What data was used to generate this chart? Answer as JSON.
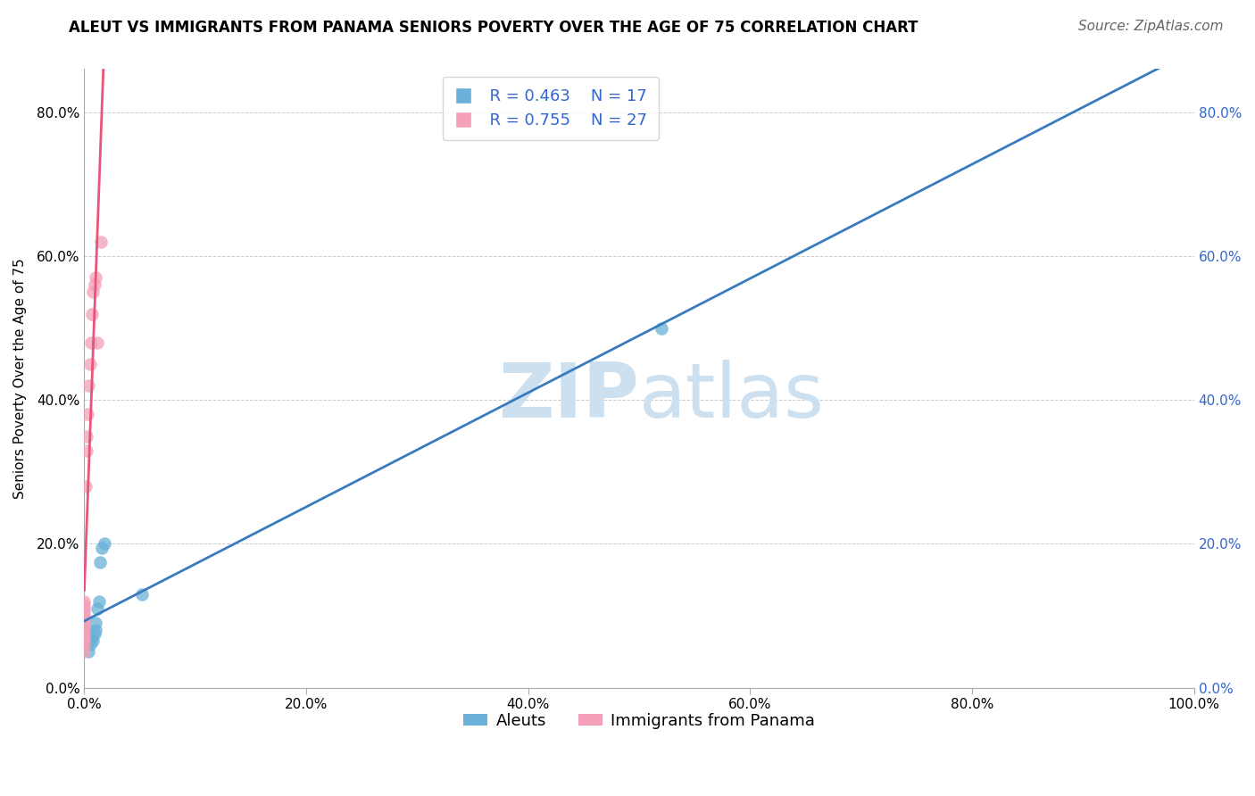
{
  "title": "ALEUT VS IMMIGRANTS FROM PANAMA SENIORS POVERTY OVER THE AGE OF 75 CORRELATION CHART",
  "source": "Source: ZipAtlas.com",
  "ylabel": "Seniors Poverty Over the Age of 75",
  "xlabel": "",
  "R_aleuts": 0.463,
  "N_aleuts": 17,
  "R_panama": 0.755,
  "N_panama": 27,
  "aleuts_color": "#6ab0d8",
  "panama_color": "#f4a0b8",
  "aleuts_line_color": "#3a7bbf",
  "panama_line_color": "#e8547a",
  "watermark_color": "#cce0f0",
  "xlim": [
    0.0,
    1.0
  ],
  "ylim": [
    0.0,
    0.86
  ],
  "xticks": [
    0.0,
    0.2,
    0.4,
    0.6,
    0.8,
    1.0
  ],
  "yticks": [
    0.0,
    0.2,
    0.4,
    0.6,
    0.8
  ],
  "xtick_labels": [
    "0.0%",
    "20.0%",
    "40.0%",
    "60.0%",
    "80.0%",
    "100.0%"
  ],
  "ytick_labels": [
    "0.0%",
    "20.0%",
    "40.0%",
    "60.0%",
    "80.0%"
  ],
  "aleuts_x": [
    0.0,
    0.0,
    0.0,
    0.004,
    0.005,
    0.007,
    0.008,
    0.009,
    0.01,
    0.01,
    0.012,
    0.013,
    0.014,
    0.016,
    0.018,
    0.052,
    0.52
  ],
  "aleuts_y": [
    0.06,
    0.07,
    0.08,
    0.05,
    0.06,
    0.07,
    0.065,
    0.075,
    0.08,
    0.09,
    0.11,
    0.12,
    0.175,
    0.195,
    0.2,
    0.13,
    0.5
  ],
  "panama_x": [
    0.0,
    0.0,
    0.0,
    0.0,
    0.0,
    0.0,
    0.0,
    0.0,
    0.0,
    0.0,
    0.0,
    0.0,
    0.0,
    0.0,
    0.001,
    0.002,
    0.002,
    0.003,
    0.004,
    0.005,
    0.006,
    0.007,
    0.008,
    0.009,
    0.01,
    0.012,
    0.015
  ],
  "panama_y": [
    0.05,
    0.06,
    0.065,
    0.07,
    0.075,
    0.08,
    0.085,
    0.09,
    0.095,
    0.1,
    0.105,
    0.11,
    0.115,
    0.12,
    0.28,
    0.33,
    0.35,
    0.38,
    0.42,
    0.45,
    0.48,
    0.52,
    0.55,
    0.56,
    0.57,
    0.48,
    0.62
  ],
  "title_fontsize": 12,
  "label_fontsize": 11,
  "tick_fontsize": 11,
  "legend_fontsize": 13,
  "source_fontsize": 11
}
